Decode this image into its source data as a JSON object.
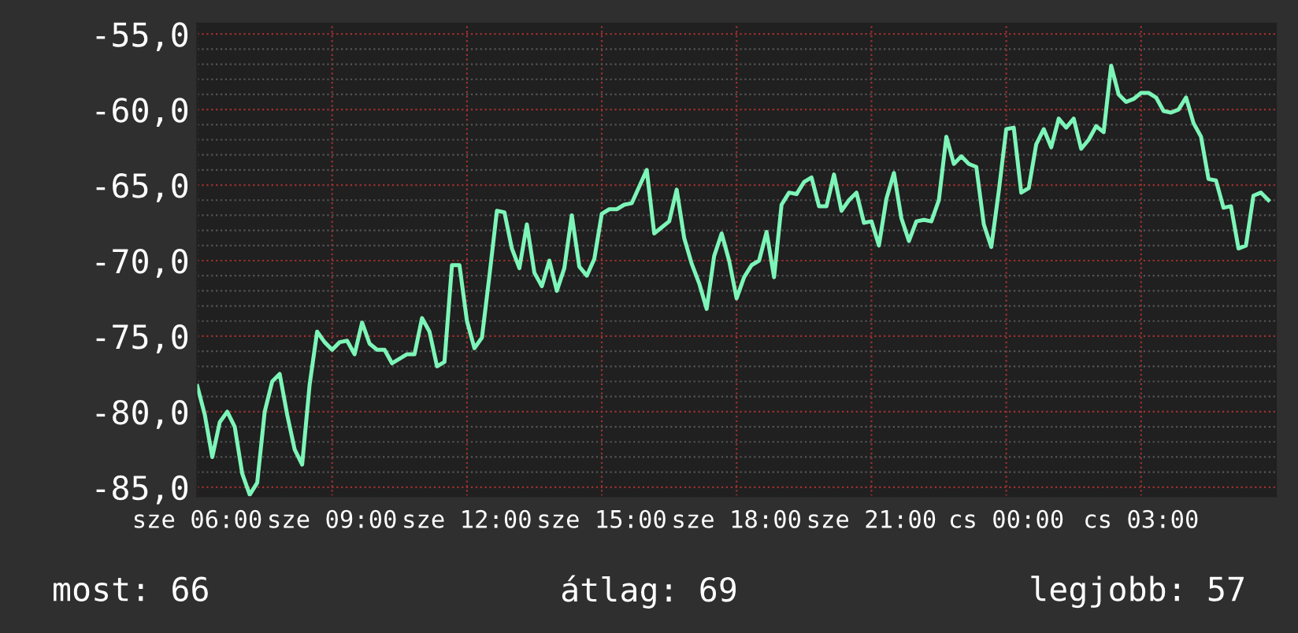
{
  "chart_data": {
    "type": "line",
    "categories": [
      "sze 06:00",
      null,
      null,
      null,
      null,
      null,
      null,
      null,
      null,
      null,
      null,
      null,
      null,
      null,
      null,
      null,
      null,
      null,
      "sze 09:00",
      null,
      null,
      null,
      null,
      null,
      null,
      null,
      null,
      null,
      null,
      null,
      null,
      null,
      null,
      null,
      null,
      null,
      "sze 12:00",
      null,
      null,
      null,
      null,
      null,
      null,
      null,
      null,
      null,
      null,
      null,
      null,
      null,
      null,
      null,
      null,
      null,
      "sze 15:00",
      null,
      null,
      null,
      null,
      null,
      null,
      null,
      null,
      null,
      null,
      null,
      null,
      null,
      null,
      null,
      null,
      null,
      "sze 18:00",
      null,
      null,
      null,
      null,
      null,
      null,
      null,
      null,
      null,
      null,
      null,
      null,
      null,
      null,
      null,
      null,
      null,
      "sze 21:00",
      null,
      null,
      null,
      null,
      null,
      null,
      null,
      null,
      null,
      null,
      null,
      null,
      null,
      null,
      null,
      null,
      null,
      "cs 00:00",
      null,
      null,
      null,
      null,
      null,
      null,
      null,
      null,
      null,
      null,
      null,
      null,
      null,
      null,
      null,
      null,
      null,
      "cs 03:00",
      null,
      null,
      null,
      null,
      null,
      null,
      null,
      null,
      null,
      null,
      null,
      null,
      null,
      null,
      null,
      null,
      null
    ],
    "series": [
      {
        "color": "#7df5b8",
        "values": [
          -78.3,
          -80.2,
          -83.0,
          -80.7,
          -80.0,
          -81.0,
          -84.1,
          -85.5,
          -84.7,
          -80.0,
          -78.0,
          -77.5,
          -80.2,
          -82.5,
          -83.5,
          -78.2,
          -74.7,
          -75.4,
          -75.9,
          -75.4,
          -75.3,
          -76.2,
          -74.1,
          -75.5,
          -75.9,
          -75.9,
          -76.8,
          -76.5,
          -76.2,
          -76.2,
          -73.8,
          -74.7,
          -77.0,
          -76.7,
          -70.3,
          -70.3,
          -74.0,
          -75.8,
          -75.1,
          -71.0,
          -66.7,
          -66.8,
          -69.2,
          -70.5,
          -67.6,
          -70.8,
          -71.7,
          -70.0,
          -72.0,
          -70.5,
          -67.0,
          -70.4,
          -71.0,
          -69.9,
          -66.9,
          -66.6,
          -66.6,
          -66.3,
          -66.2,
          -65.1,
          -64.0,
          -68.2,
          -67.8,
          -67.4,
          -65.3,
          -68.5,
          -70.2,
          -71.5,
          -73.2,
          -69.7,
          -68.2,
          -70.0,
          -72.5,
          -71.1,
          -70.3,
          -70.0,
          -68.1,
          -71.1,
          -66.3,
          -65.5,
          -65.6,
          -64.8,
          -64.5,
          -66.4,
          -66.4,
          -64.3,
          -66.7,
          -66.0,
          -65.5,
          -67.5,
          -67.4,
          -69.0,
          -65.9,
          -64.2,
          -67.2,
          -68.7,
          -67.4,
          -67.3,
          -67.4,
          -66.0,
          -61.8,
          -63.6,
          -63.1,
          -63.6,
          -63.8,
          -67.6,
          -69.1,
          -65.4,
          -61.3,
          -61.2,
          -65.5,
          -65.2,
          -62.3,
          -61.3,
          -62.5,
          -60.6,
          -61.2,
          -60.6,
          -62.6,
          -62.0,
          -61.1,
          -61.5,
          -57.1,
          -59.0,
          -59.5,
          -59.3,
          -58.9,
          -58.9,
          -59.2,
          -60.1,
          -60.2,
          -60.0,
          -59.2,
          -60.9,
          -61.8,
          -64.6,
          -64.7,
          -66.5,
          -66.4,
          -69.2,
          -69.0,
          -65.7,
          -65.5,
          -66.0
        ]
      }
    ],
    "ylim": [
      -85.6,
      -54.3
    ],
    "yticks": [
      {
        "value": -85,
        "label": "-85,0"
      },
      {
        "value": -84,
        "label": null
      },
      {
        "value": -83,
        "label": null
      },
      {
        "value": -82,
        "label": null
      },
      {
        "value": -81,
        "label": null
      },
      {
        "value": -80,
        "label": "-80,0"
      },
      {
        "value": -79,
        "label": null
      },
      {
        "value": -78,
        "label": null
      },
      {
        "value": -77,
        "label": null
      },
      {
        "value": -76,
        "label": null
      },
      {
        "value": -75,
        "label": "-75,0"
      },
      {
        "value": -74,
        "label": null
      },
      {
        "value": -73,
        "label": null
      },
      {
        "value": -72,
        "label": null
      },
      {
        "value": -71,
        "label": null
      },
      {
        "value": -70,
        "label": "-70,0"
      },
      {
        "value": -69,
        "label": null
      },
      {
        "value": -68,
        "label": null
      },
      {
        "value": -67,
        "label": null
      },
      {
        "value": -66,
        "label": null
      },
      {
        "value": -65,
        "label": "-65,0"
      },
      {
        "value": -64,
        "label": null
      },
      {
        "value": -63,
        "label": null
      },
      {
        "value": -62,
        "label": null
      },
      {
        "value": -61,
        "label": null
      },
      {
        "value": -60,
        "label": "-60,0"
      },
      {
        "value": -59,
        "label": null
      },
      {
        "value": -58,
        "label": null
      },
      {
        "value": -57,
        "label": null
      },
      {
        "value": -56,
        "label": null
      },
      {
        "value": -55,
        "label": "-55,0"
      }
    ],
    "grid": true,
    "line_style": "solid",
    "marker": "none",
    "annotations": [
      "most: 66",
      "átlag: 69",
      "legjobb: 57"
    ]
  }
}
